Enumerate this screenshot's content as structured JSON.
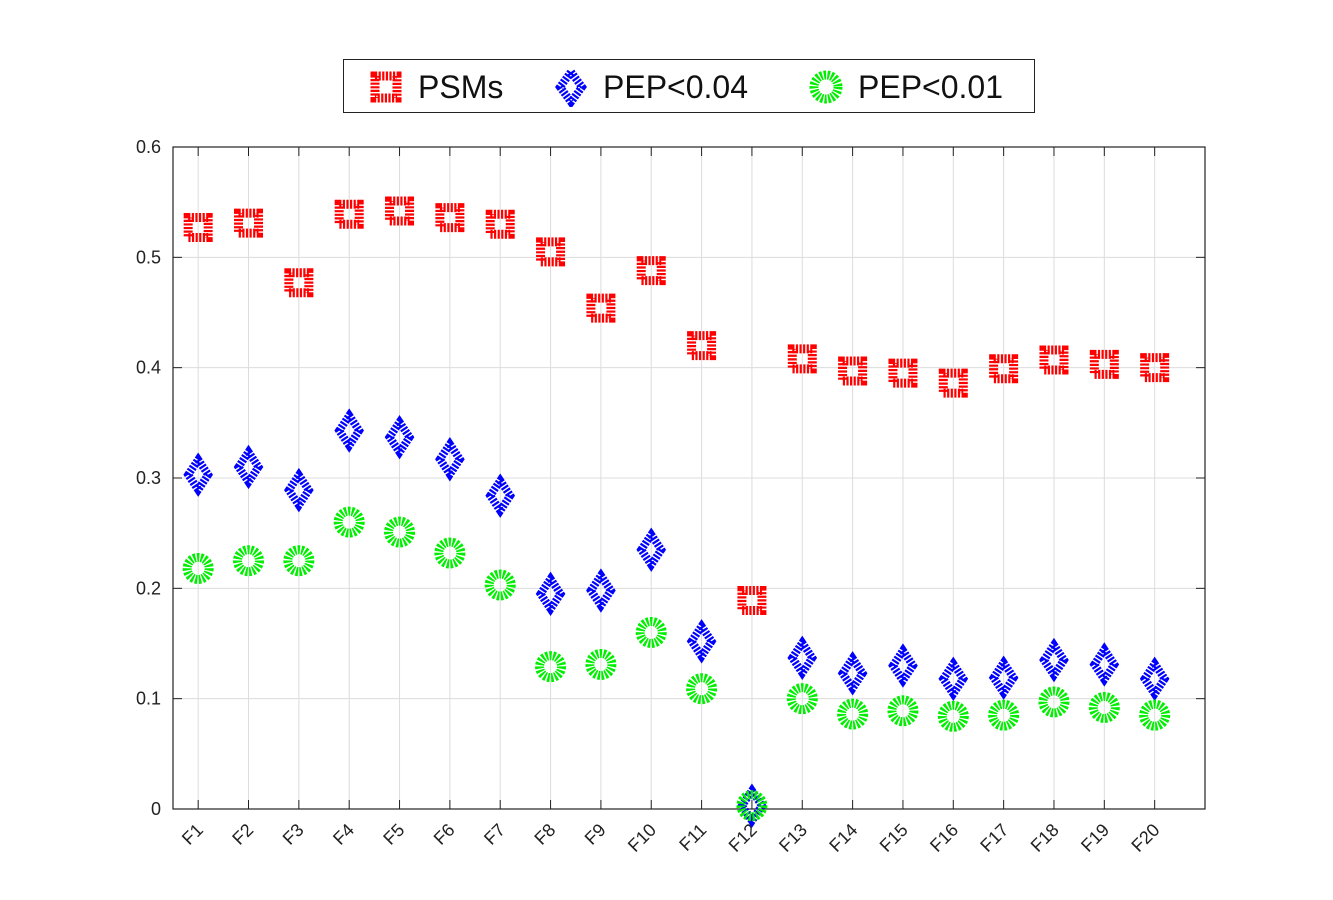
{
  "chart_data": {
    "type": "scatter",
    "categories": [
      "F1",
      "F2",
      "F3",
      "F4",
      "F5",
      "F6",
      "F7",
      "F8",
      "F9",
      "F10",
      "F11",
      "F12",
      "F13",
      "F14",
      "F15",
      "F16",
      "F17",
      "F18",
      "F19",
      "F20"
    ],
    "ylim": [
      0,
      0.6
    ],
    "yticks": [
      "0",
      "0.1",
      "0.2",
      "0.3",
      "0.4",
      "0.5",
      "0.6"
    ],
    "grid": true,
    "legend_position": "top-center",
    "series": [
      {
        "name": "PSMs",
        "marker": "square",
        "color": "#ff0000",
        "values": [
          0.527,
          0.531,
          0.477,
          0.539,
          0.542,
          0.536,
          0.53,
          0.505,
          0.454,
          0.488,
          0.42,
          0.189,
          0.408,
          0.397,
          0.395,
          0.386,
          0.399,
          0.407,
          0.403,
          0.4
        ]
      },
      {
        "name": "PEP<0.04",
        "marker": "diamond",
        "color": "#0000ff",
        "values": [
          0.303,
          0.31,
          0.289,
          0.343,
          0.337,
          0.317,
          0.284,
          0.195,
          0.198,
          0.235,
          0.152,
          0.003,
          0.137,
          0.123,
          0.13,
          0.118,
          0.119,
          0.135,
          0.131,
          0.118
        ]
      },
      {
        "name": "PEP<0.01",
        "marker": "circle",
        "color": "#00ee00",
        "values": [
          0.218,
          0.225,
          0.225,
          0.26,
          0.251,
          0.232,
          0.203,
          0.129,
          0.131,
          0.16,
          0.109,
          0.003,
          0.1,
          0.086,
          0.089,
          0.084,
          0.085,
          0.097,
          0.092,
          0.085
        ]
      }
    ]
  }
}
